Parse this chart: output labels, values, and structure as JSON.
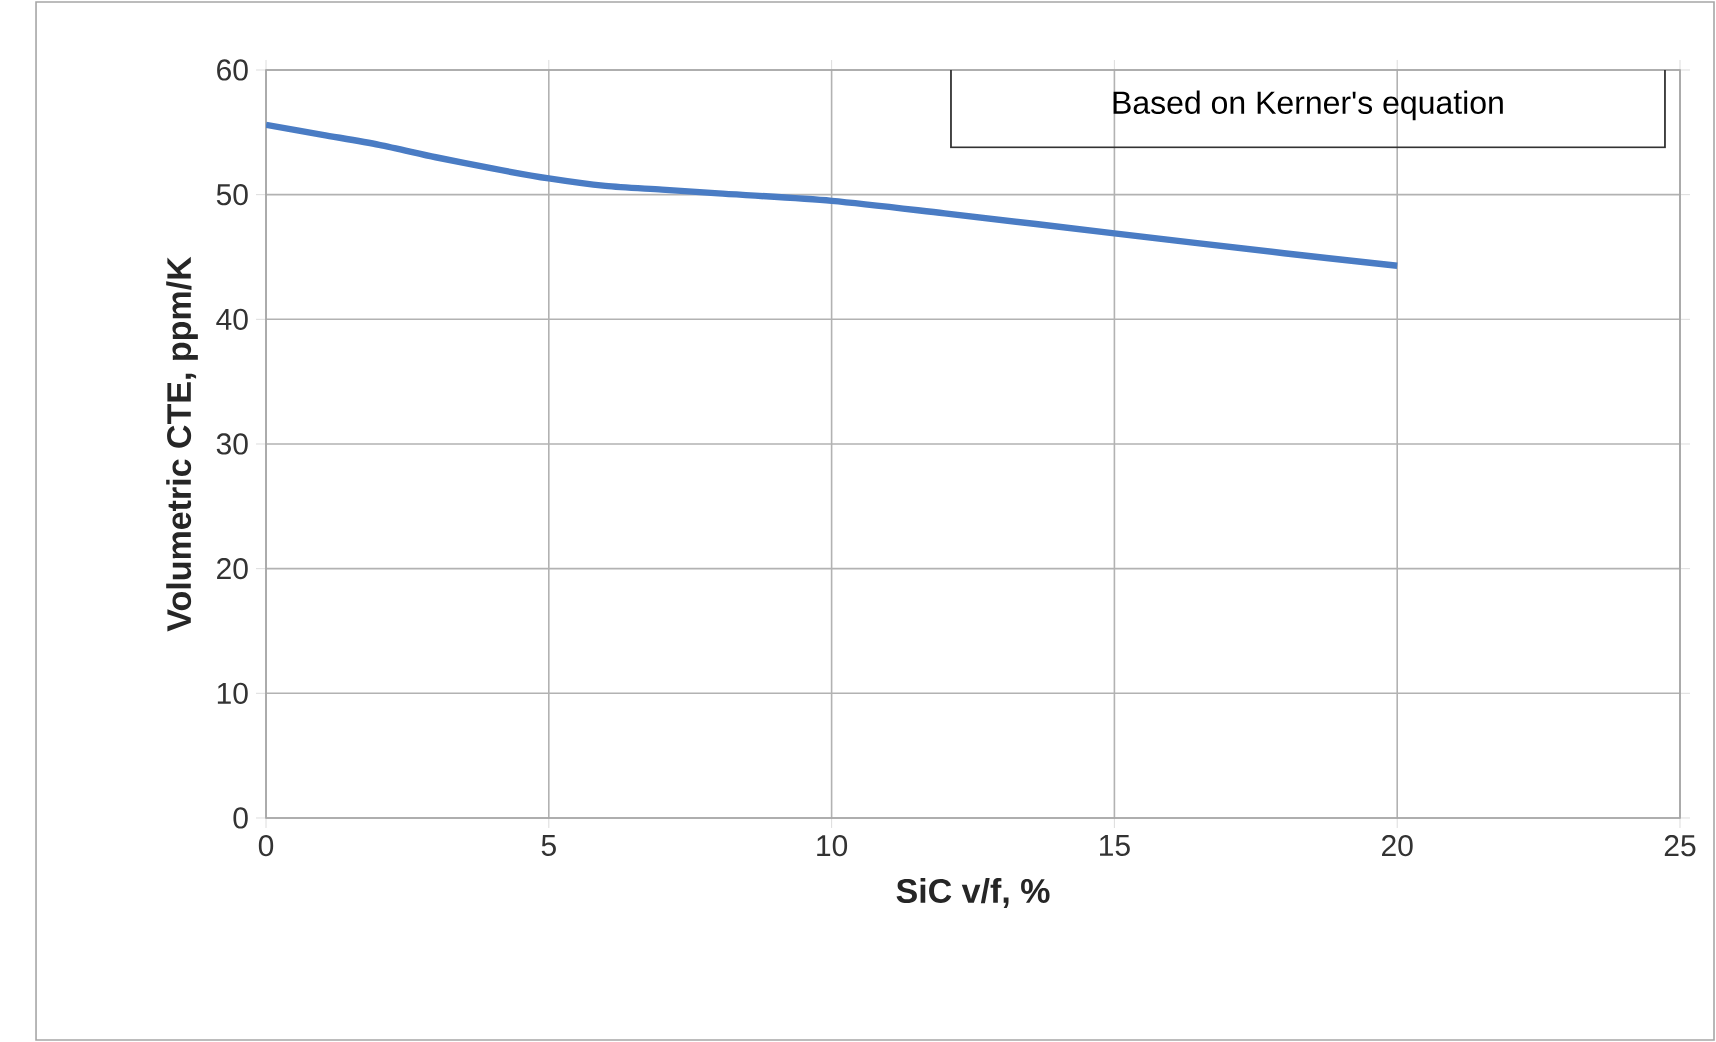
{
  "chart_data": {
    "type": "line",
    "xlabel": "SiC v/f, %",
    "ylabel": "Volumetric CTE, ppm/K",
    "annotations": [
      "Based on Kerner's equation"
    ],
    "x": [
      0,
      1,
      2,
      3,
      4,
      5,
      6,
      7,
      8,
      10,
      12,
      15,
      18,
      20
    ],
    "series": [
      {
        "color": "#4a7cc4",
        "values": [
          55.6,
          54.8,
          54.0,
          53.0,
          52.1,
          51.3,
          50.7,
          50.4,
          50.1,
          49.5,
          48.5,
          46.9,
          45.3,
          44.3
        ]
      }
    ],
    "xlim": [
      0,
      25
    ],
    "ylim": [
      0,
      60
    ],
    "xticks": [
      0,
      5,
      10,
      15,
      20,
      25
    ],
    "yticks": [
      0,
      10,
      20,
      30,
      40,
      50,
      60
    ],
    "grid": true,
    "marker": "none",
    "line_style": "solid"
  }
}
